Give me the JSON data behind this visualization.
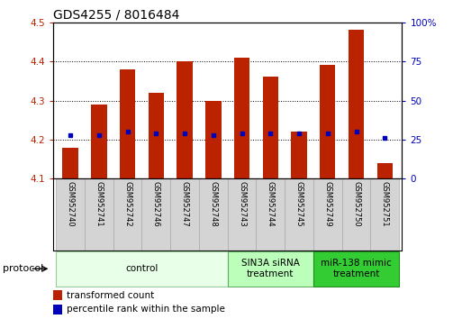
{
  "title": "GDS4255 / 8016484",
  "samples": [
    "GSM952740",
    "GSM952741",
    "GSM952742",
    "GSM952746",
    "GSM952747",
    "GSM952748",
    "GSM952743",
    "GSM952744",
    "GSM952745",
    "GSM952749",
    "GSM952750",
    "GSM952751"
  ],
  "transformed_count": [
    4.18,
    4.29,
    4.38,
    4.32,
    4.4,
    4.3,
    4.41,
    4.36,
    4.22,
    4.39,
    4.48,
    4.14
  ],
  "percentile_rank": [
    28,
    28,
    30,
    29,
    29,
    28,
    29,
    29,
    29,
    29,
    30,
    26
  ],
  "bar_bottom": 4.1,
  "ylim_left": [
    4.1,
    4.5
  ],
  "ylim_right": [
    0,
    100
  ],
  "yticks_left": [
    4.1,
    4.2,
    4.3,
    4.4,
    4.5
  ],
  "yticks_right": [
    0,
    25,
    50,
    75,
    100
  ],
  "bar_color": "#bb2200",
  "dot_color": "#0000bb",
  "grid_color": "#000000",
  "protocol_groups": [
    {
      "label": "control",
      "start": 0,
      "end": 6,
      "color": "#e8ffe8",
      "edge_color": "#99cc99"
    },
    {
      "label": "SIN3A siRNA\ntreatment",
      "start": 6,
      "end": 9,
      "color": "#bbffbb",
      "edge_color": "#66aa66"
    },
    {
      "label": "miR-138 mimic\ntreatment",
      "start": 9,
      "end": 12,
      "color": "#33cc33",
      "edge_color": "#228822"
    }
  ],
  "legend_labels": [
    "transformed count",
    "percentile rank within the sample"
  ],
  "legend_colors": [
    "#bb2200",
    "#0000bb"
  ],
  "title_fontsize": 10,
  "tick_fontsize": 7.5,
  "sample_fontsize": 6,
  "proto_fontsize": 7.5,
  "legend_fontsize": 7.5
}
